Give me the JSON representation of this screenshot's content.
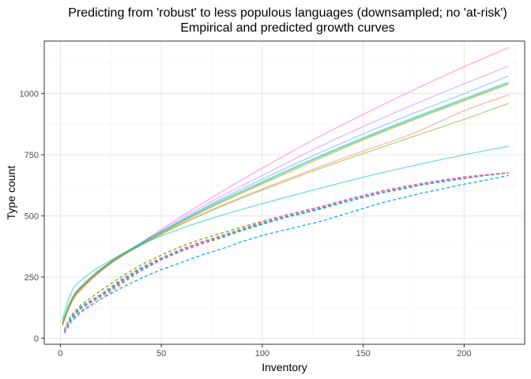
{
  "chart_data": {
    "type": "line",
    "title": "Predicting from 'robust' to less populous languages (downsampled; no 'at-risk')",
    "subtitle": "Empirical and predicted growth curves",
    "xlabel": "Inventory",
    "ylabel": "Type count",
    "xlim": [
      -8,
      230
    ],
    "ylim": [
      -25,
      1215
    ],
    "x_ticks": [
      0,
      50,
      100,
      150,
      200
    ],
    "x_tick_labels": [
      "0",
      "50",
      "100",
      "150",
      "200"
    ],
    "y_ticks": [
      0,
      250,
      500,
      750,
      1000
    ],
    "y_tick_labels": [
      "0",
      "250",
      "500",
      "750",
      "1000"
    ],
    "grid": true,
    "legend": "none",
    "colors": [
      "#f8766d",
      "#cd9600",
      "#7cae00",
      "#00be67",
      "#00bfc4",
      "#00a9ff",
      "#c77cff",
      "#ff61cc"
    ],
    "predicted_series": [
      {
        "color": "#ff61cc",
        "x": [
          1,
          5,
          10,
          25,
          50,
          75,
          100,
          125,
          150,
          175,
          200,
          222
        ],
        "y": [
          55,
          140,
          200,
          305,
          445,
          575,
          695,
          810,
          915,
          1015,
          1110,
          1188
        ]
      },
      {
        "color": "#c77cff",
        "x": [
          1,
          5,
          10,
          25,
          50,
          75,
          100,
          125,
          150,
          175,
          200,
          222
        ],
        "y": [
          60,
          145,
          205,
          310,
          440,
          560,
          665,
          770,
          865,
          955,
          1040,
          1113
        ]
      },
      {
        "color": "#6699ff",
        "x": [
          1,
          5,
          10,
          25,
          50,
          75,
          100,
          125,
          150,
          175,
          200,
          222
        ],
        "y": [
          58,
          145,
          205,
          310,
          435,
          550,
          650,
          745,
          835,
          920,
          1000,
          1073
        ]
      },
      {
        "color": "#00bfc4",
        "x": [
          1,
          5,
          10,
          25,
          50,
          75,
          100,
          125,
          150,
          175,
          200,
          222
        ],
        "y": [
          62,
          150,
          210,
          315,
          435,
          545,
          640,
          733,
          820,
          902,
          980,
          1048
        ]
      },
      {
        "color": "#00be67",
        "x": [
          1,
          5,
          10,
          25,
          50,
          75,
          100,
          125,
          150,
          175,
          200,
          222
        ],
        "y": [
          60,
          148,
          208,
          312,
          432,
          540,
          635,
          728,
          815,
          897,
          975,
          1043
        ]
      },
      {
        "color": "#cd9600",
        "x": [
          1,
          5,
          10,
          25,
          50,
          75,
          100,
          125,
          150,
          175,
          200,
          222
        ],
        "y": [
          58,
          146,
          205,
          310,
          428,
          536,
          630,
          722,
          810,
          892,
          970,
          1038
        ]
      },
      {
        "color": "#f8766d",
        "x": [
          1,
          5,
          10,
          25,
          50,
          75,
          100,
          125,
          150,
          175,
          200,
          222
        ],
        "y": [
          50,
          135,
          195,
          305,
          425,
          525,
          610,
          690,
          765,
          838,
          930,
          995
        ]
      },
      {
        "color": "#7cae00",
        "x": [
          1,
          5,
          10,
          25,
          50,
          75,
          100,
          125,
          150,
          175,
          200,
          222
        ],
        "y": [
          55,
          140,
          200,
          308,
          425,
          522,
          605,
          683,
          755,
          825,
          895,
          960
        ]
      },
      {
        "color": "#00bfc4",
        "x": [
          1,
          5,
          10,
          25,
          50,
          75,
          100,
          125,
          150,
          175,
          200,
          222
        ],
        "y": [
          75,
          180,
          235,
          320,
          418,
          490,
          550,
          605,
          658,
          706,
          750,
          785
        ]
      }
    ],
    "empirical_series": [
      {
        "color": "#f8766d",
        "x": [
          2,
          5,
          10,
          20,
          30,
          40,
          50,
          60,
          70,
          80,
          90,
          100,
          110,
          120,
          130,
          140,
          150,
          160,
          170,
          180,
          190,
          200,
          210,
          222
        ],
        "y": [
          30,
          85,
          130,
          180,
          240,
          290,
          330,
          365,
          395,
          420,
          445,
          470,
          495,
          515,
          535,
          560,
          580,
          600,
          615,
          630,
          645,
          655,
          665,
          675
        ]
      },
      {
        "color": "#cd9600",
        "x": [
          2,
          5,
          10,
          20,
          30,
          40,
          50,
          60,
          70,
          80,
          90,
          100,
          110,
          120,
          130,
          140,
          150,
          160,
          170,
          180,
          190,
          200,
          210,
          222
        ],
        "y": [
          25,
          75,
          120,
          170,
          225,
          275,
          320,
          355,
          385,
          410,
          440,
          465,
          490,
          510,
          530,
          555,
          575,
          595,
          610,
          628,
          640,
          652,
          664,
          675
        ]
      },
      {
        "color": "#7cae00",
        "x": [
          2,
          5,
          10,
          20,
          30,
          40,
          50,
          60,
          70,
          80,
          90,
          100,
          110,
          120,
          130,
          140,
          150,
          160,
          170,
          180,
          190,
          200,
          210,
          222
        ],
        "y": [
          35,
          90,
          135,
          195,
          250,
          300,
          340,
          375,
          405,
          430,
          455,
          478,
          500,
          520,
          540,
          562,
          582,
          603,
          618,
          632,
          646,
          658,
          668,
          677
        ]
      },
      {
        "color": "#00be67",
        "x": [
          2,
          5,
          10,
          20,
          30,
          40,
          50,
          60,
          70,
          80,
          90,
          100,
          110,
          120,
          130,
          140,
          150,
          160,
          170,
          180,
          190,
          200,
          210,
          222
        ],
        "y": [
          30,
          80,
          125,
          175,
          235,
          285,
          325,
          360,
          392,
          418,
          442,
          468,
          492,
          512,
          533,
          557,
          578,
          598,
          614,
          630,
          643,
          655,
          666,
          676
        ]
      },
      {
        "color": "#00bfc4",
        "x": [
          2,
          5,
          10,
          20,
          30,
          40,
          50,
          60,
          70,
          80,
          90,
          100,
          110,
          120,
          130,
          140,
          150,
          160,
          170,
          180,
          190,
          200,
          210,
          222
        ],
        "y": [
          28,
          78,
          122,
          172,
          230,
          280,
          322,
          358,
          388,
          414,
          440,
          466,
          490,
          510,
          531,
          554,
          576,
          596,
          612,
          628,
          641,
          654,
          665,
          676
        ]
      },
      {
        "color": "#00a9ff",
        "x": [
          2,
          5,
          10,
          20,
          30,
          40,
          50,
          60,
          70,
          80,
          90,
          100,
          110,
          120,
          130,
          140,
          150,
          160,
          170,
          180,
          190,
          200,
          210,
          222
        ],
        "y": [
          25,
          70,
          110,
          160,
          205,
          245,
          280,
          310,
          340,
          365,
          395,
          420,
          440,
          460,
          480,
          505,
          530,
          555,
          575,
          595,
          612,
          630,
          645,
          665
        ]
      },
      {
        "color": "#c77cff",
        "x": [
          2,
          5,
          10,
          20,
          30,
          40,
          50,
          60,
          70,
          80,
          90,
          100,
          110,
          120,
          130,
          140,
          150,
          160,
          170,
          180,
          190,
          200,
          210,
          222
        ],
        "y": [
          30,
          85,
          128,
          178,
          238,
          288,
          328,
          362,
          394,
          420,
          446,
          472,
          496,
          516,
          537,
          560,
          580,
          600,
          616,
          632,
          645,
          656,
          667,
          676
        ]
      },
      {
        "color": "#ff61cc",
        "x": [
          2,
          5,
          10,
          20,
          30,
          40,
          50,
          60,
          70,
          80,
          90,
          100,
          110,
          120,
          130,
          140,
          150,
          160,
          170,
          180,
          190,
          200,
          210,
          222
        ],
        "y": [
          20,
          60,
          105,
          160,
          220,
          275,
          320,
          355,
          390,
          420,
          448,
          475,
          500,
          520,
          540,
          563,
          584,
          604,
          620,
          635,
          648,
          660,
          668,
          678
        ]
      }
    ]
  }
}
